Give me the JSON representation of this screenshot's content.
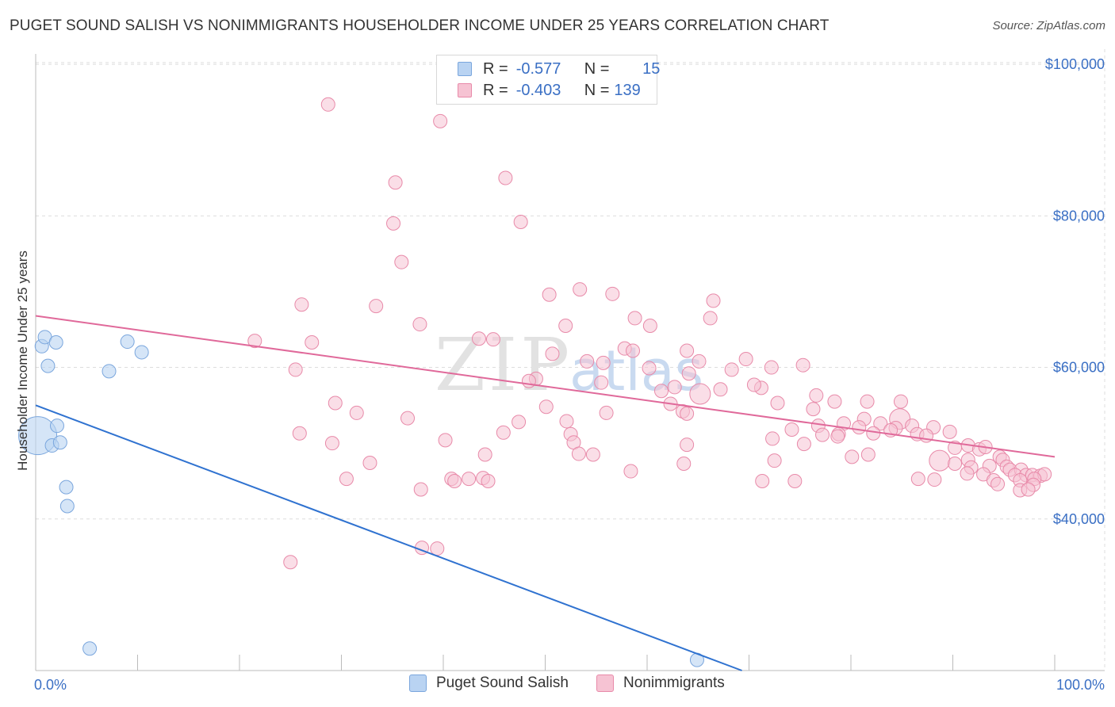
{
  "header": {
    "title": "PUGET SOUND SALISH VS NONIMMIGRANTS HOUSEHOLDER INCOME UNDER 25 YEARS CORRELATION CHART",
    "source": "Source: ZipAtlas.com"
  },
  "legend_top": {
    "row1": {
      "r_label": "R =",
      "r_value": "-0.577",
      "n_label": "N =",
      "n_value": "15"
    },
    "row2": {
      "r_label": "R =",
      "r_value": "-0.403",
      "n_label": "N =",
      "n_value": "139"
    }
  },
  "legend_bottom": {
    "series1": "Puget Sound Salish",
    "series2": "Nonimmigrants"
  },
  "colors": {
    "blue_fill": "#b9d3f2",
    "blue_stroke": "#7aa6dd",
    "blue_line": "#2f72d0",
    "pink_fill": "#f6c3d3",
    "pink_stroke": "#e88aa9",
    "pink_line": "#e0699a",
    "tick_text": "#3a6fc4"
  },
  "watermark": {
    "part1": "ZIP",
    "part2": "atlas"
  },
  "chart_data": {
    "type": "scatter",
    "title": "PUGET SOUND SALISH VS NONIMMIGRANTS HOUSEHOLDER INCOME UNDER 25 YEARS CORRELATION CHART",
    "xlabel": "",
    "ylabel": "Householder Income Under 25 years",
    "xlim": [
      0,
      100
    ],
    "ylim": [
      20000,
      102000
    ],
    "x_tick_labels": [
      "0.0%",
      "100.0%"
    ],
    "y_ticks": [
      40000,
      60000,
      80000,
      100000
    ],
    "y_tick_labels": [
      "$40,000",
      "$60,000",
      "$80,000",
      "$100,000"
    ],
    "series": [
      {
        "name": "Puget Sound Salish",
        "r": -0.577,
        "n": 15,
        "trend": {
          "x": [
            0,
            69.3
          ],
          "y": [
            55000,
            20000
          ]
        },
        "points": [
          [
            0.2,
            51000,
            26
          ],
          [
            0.6,
            62800,
            10
          ],
          [
            0.9,
            64000,
            10
          ],
          [
            1.2,
            60200,
            10
          ],
          [
            1.6,
            49700,
            10
          ],
          [
            2.0,
            63300,
            10
          ],
          [
            2.1,
            52300,
            10
          ],
          [
            2.4,
            50100,
            10
          ],
          [
            3.0,
            44200,
            10
          ],
          [
            3.1,
            41700,
            10
          ],
          [
            5.3,
            22900,
            10
          ],
          [
            7.2,
            59500,
            10
          ],
          [
            9.0,
            63400,
            10
          ],
          [
            10.4,
            62000,
            10
          ],
          [
            64.9,
            21400,
            10
          ]
        ]
      },
      {
        "name": "Nonimmigrants",
        "r": -0.403,
        "n": 139,
        "trend": {
          "x": [
            0,
            100
          ],
          "y": [
            66800,
            48200
          ]
        },
        "points": [
          [
            28.7,
            94700,
            10
          ],
          [
            39.7,
            92500,
            10
          ],
          [
            46.1,
            85000,
            10
          ],
          [
            35.3,
            84400,
            10
          ],
          [
            47.6,
            79200,
            10
          ],
          [
            35.1,
            79000,
            10
          ],
          [
            35.9,
            73900,
            10
          ],
          [
            53.4,
            70300,
            10
          ],
          [
            50.4,
            69600,
            10
          ],
          [
            56.6,
            69700,
            10
          ],
          [
            66.5,
            68800,
            10
          ],
          [
            26.1,
            68300,
            10
          ],
          [
            33.4,
            68100,
            10
          ],
          [
            66.2,
            66500,
            10
          ],
          [
            58.8,
            66500,
            10
          ],
          [
            37.7,
            65700,
            10
          ],
          [
            60.3,
            65500,
            10
          ],
          [
            52.0,
            65500,
            10
          ],
          [
            43.5,
            63800,
            10
          ],
          [
            44.9,
            63700,
            10
          ],
          [
            21.5,
            63500,
            10
          ],
          [
            27.1,
            63300,
            10
          ],
          [
            57.8,
            62500,
            10
          ],
          [
            58.6,
            62200,
            10
          ],
          [
            63.9,
            62200,
            10
          ],
          [
            50.7,
            61800,
            10
          ],
          [
            54.1,
            60800,
            10
          ],
          [
            65.1,
            60800,
            10
          ],
          [
            69.7,
            61100,
            10
          ],
          [
            55.7,
            60600,
            10
          ],
          [
            75.3,
            60300,
            10
          ],
          [
            72.2,
            60000,
            10
          ],
          [
            25.5,
            59700,
            10
          ],
          [
            68.3,
            59700,
            10
          ],
          [
            60.2,
            59900,
            10
          ],
          [
            64.1,
            59200,
            10
          ],
          [
            49.1,
            58500,
            10
          ],
          [
            55.5,
            58000,
            10
          ],
          [
            48.4,
            58200,
            10
          ],
          [
            67.2,
            57100,
            10
          ],
          [
            61.4,
            56900,
            10
          ],
          [
            62.7,
            57400,
            10
          ],
          [
            71.2,
            57300,
            10
          ],
          [
            70.5,
            57700,
            10
          ],
          [
            65.2,
            56500,
            14
          ],
          [
            76.6,
            56300,
            10
          ],
          [
            78.4,
            55500,
            10
          ],
          [
            81.6,
            55500,
            10
          ],
          [
            84.9,
            55500,
            10
          ],
          [
            72.8,
            55300,
            10
          ],
          [
            62.3,
            55200,
            10
          ],
          [
            29.4,
            55300,
            10
          ],
          [
            50.1,
            54800,
            10
          ],
          [
            63.5,
            54200,
            10
          ],
          [
            76.3,
            54500,
            10
          ],
          [
            31.5,
            54000,
            10
          ],
          [
            56.0,
            54000,
            10
          ],
          [
            63.9,
            53900,
            10
          ],
          [
            81.3,
            53200,
            10
          ],
          [
            84.8,
            53200,
            14
          ],
          [
            82.9,
            52600,
            10
          ],
          [
            36.5,
            53300,
            10
          ],
          [
            47.4,
            52800,
            10
          ],
          [
            52.1,
            52900,
            10
          ],
          [
            79.3,
            52600,
            10
          ],
          [
            76.8,
            52300,
            10
          ],
          [
            80.8,
            52100,
            10
          ],
          [
            84.4,
            52000,
            10
          ],
          [
            86.0,
            52300,
            10
          ],
          [
            88.1,
            52100,
            10
          ],
          [
            83.9,
            51700,
            10
          ],
          [
            89.7,
            51500,
            10
          ],
          [
            86.5,
            51200,
            10
          ],
          [
            74.2,
            51800,
            10
          ],
          [
            77.2,
            51100,
            10
          ],
          [
            78.8,
            51200,
            10
          ],
          [
            82.2,
            51300,
            10
          ],
          [
            25.9,
            51300,
            10
          ],
          [
            45.9,
            51400,
            10
          ],
          [
            52.5,
            51200,
            10
          ],
          [
            78.7,
            50900,
            10
          ],
          [
            87.4,
            51000,
            10
          ],
          [
            40.2,
            50400,
            10
          ],
          [
            52.8,
            50100,
            10
          ],
          [
            72.3,
            50600,
            10
          ],
          [
            29.1,
            50000,
            10
          ],
          [
            63.9,
            49800,
            10
          ],
          [
            75.4,
            49900,
            10
          ],
          [
            91.5,
            49700,
            10
          ],
          [
            92.6,
            49200,
            10
          ],
          [
            93.2,
            49500,
            10
          ],
          [
            90.2,
            49400,
            10
          ],
          [
            81.7,
            48500,
            10
          ],
          [
            54.7,
            48500,
            10
          ],
          [
            44.1,
            48500,
            10
          ],
          [
            53.3,
            48600,
            10
          ],
          [
            94.6,
            48200,
            10
          ],
          [
            94.9,
            47800,
            10
          ],
          [
            72.5,
            47700,
            10
          ],
          [
            80.1,
            48200,
            10
          ],
          [
            91.5,
            47800,
            10
          ],
          [
            32.8,
            47400,
            10
          ],
          [
            63.6,
            47300,
            10
          ],
          [
            88.7,
            47700,
            14
          ],
          [
            90.2,
            47300,
            10
          ],
          [
            91.8,
            46800,
            10
          ],
          [
            93.6,
            47000,
            10
          ],
          [
            95.3,
            46900,
            10
          ],
          [
            95.6,
            46500,
            10
          ],
          [
            96.7,
            46500,
            10
          ],
          [
            58.4,
            46300,
            10
          ],
          [
            91.4,
            46000,
            10
          ],
          [
            93.0,
            45900,
            10
          ],
          [
            96.1,
            45800,
            10
          ],
          [
            97.2,
            45800,
            10
          ],
          [
            97.8,
            45800,
            10
          ],
          [
            98.6,
            45700,
            10
          ],
          [
            99.0,
            45900,
            10
          ],
          [
            98.0,
            45300,
            10
          ],
          [
            96.6,
            45100,
            10
          ],
          [
            94.0,
            45100,
            10
          ],
          [
            88.2,
            45200,
            10
          ],
          [
            86.6,
            45300,
            10
          ],
          [
            30.5,
            45300,
            10
          ],
          [
            40.8,
            45300,
            10
          ],
          [
            42.5,
            45300,
            10
          ],
          [
            43.9,
            45400,
            10
          ],
          [
            44.4,
            45000,
            10
          ],
          [
            41.1,
            45000,
            10
          ],
          [
            71.3,
            45000,
            10
          ],
          [
            74.5,
            45000,
            10
          ],
          [
            94.4,
            44600,
            10
          ],
          [
            97.9,
            44500,
            10
          ],
          [
            96.6,
            43800,
            10
          ],
          [
            37.8,
            43900,
            10
          ],
          [
            97.4,
            43900,
            10
          ],
          [
            37.9,
            36200,
            10
          ],
          [
            39.4,
            36100,
            10
          ],
          [
            25.0,
            34300,
            10
          ]
        ]
      }
    ]
  }
}
